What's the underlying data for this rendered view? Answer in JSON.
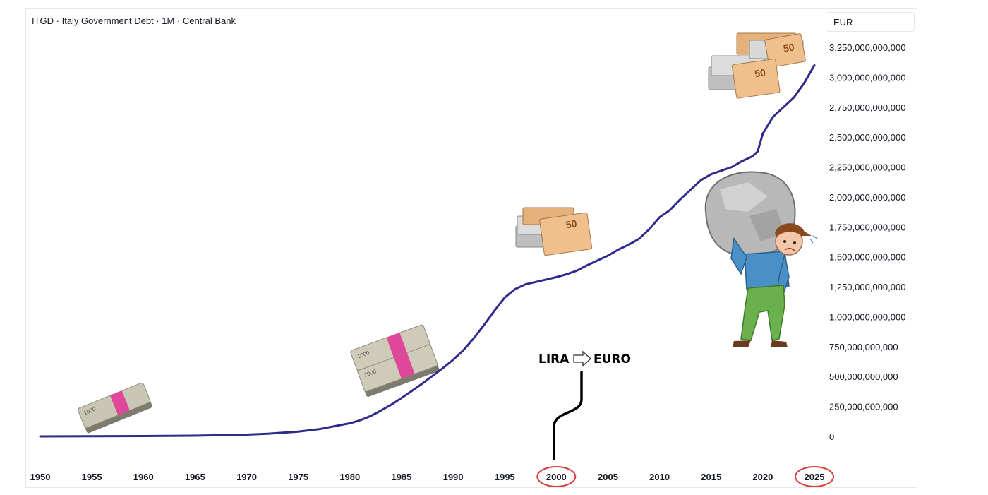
{
  "header": {
    "title": "ITGD · Italy Government Debt · 1M · Central Bank",
    "currency": "EUR"
  },
  "annotation": {
    "from": "LIRA",
    "to": "EURO",
    "arrow_icon": "outline-right-arrow-icon",
    "highlight_color": "#d93a3a"
  },
  "colors": {
    "line": "#2d2a8c",
    "lira_band": "#e0479a",
    "euro_note": "#e6b07a",
    "shirt": "#4a90c8",
    "pants": "#6ab04c",
    "boulder": "#b8b8b8"
  },
  "chart_data": {
    "type": "line",
    "title": "ITGD · Italy Government Debt · 1M · Central Bank",
    "xlabel": "",
    "ylabel": "",
    "x_ticks": [
      "1950",
      "1955",
      "1960",
      "1965",
      "1970",
      "1975",
      "1980",
      "1985",
      "1990",
      "1995",
      "2000",
      "2005",
      "2010",
      "2015",
      "2020",
      "2025"
    ],
    "y_ticks": [
      "0",
      "250,000,000,000",
      "500,000,000,000",
      "750,000,000,000",
      "1,000,000,000,000",
      "1,250,000,000,000",
      "1,500,000,000,000",
      "1,750,000,000,000",
      "2,000,000,000,000",
      "2,250,000,000,000",
      "2,500,000,000,000",
      "2,750,000,000,000",
      "3,000,000,000,000",
      "3,250,000,000,000"
    ],
    "xlim": [
      1950,
      2025
    ],
    "ylim": [
      0,
      3250000000000
    ],
    "highlighted_x_ticks": [
      "2000",
      "2025"
    ],
    "grid": false,
    "series": [
      {
        "x": [
          1950,
          1955,
          1960,
          1965,
          1970,
          1972,
          1975,
          1977,
          1980,
          1981,
          1982,
          1983,
          1984,
          1985,
          1986,
          1987,
          1988,
          1989,
          1990,
          1991,
          1992,
          1993,
          1994,
          1995,
          1996,
          1997,
          1998,
          1999,
          2000,
          2001,
          2002,
          2003,
          2004,
          2005,
          2006,
          2007,
          2008,
          2009,
          2010,
          2011,
          2012,
          2013,
          2014,
          2015,
          2016,
          2017,
          2018,
          2019,
          2019.5,
          2020,
          2021,
          2022,
          2023,
          2024,
          2025
        ],
        "values": [
          0,
          1000000000,
          3000000000,
          6000000000,
          15000000000,
          22000000000,
          40000000000,
          60000000000,
          110000000000,
          135000000000,
          170000000000,
          215000000000,
          265000000000,
          320000000000,
          380000000000,
          440000000000,
          505000000000,
          570000000000,
          640000000000,
          720000000000,
          820000000000,
          930000000000,
          1050000000000,
          1160000000000,
          1230000000000,
          1270000000000,
          1290000000000,
          1310000000000,
          1330000000000,
          1355000000000,
          1385000000000,
          1430000000000,
          1470000000000,
          1510000000000,
          1560000000000,
          1600000000000,
          1650000000000,
          1730000000000,
          1830000000000,
          1890000000000,
          1980000000000,
          2060000000000,
          2140000000000,
          2190000000000,
          2220000000000,
          2250000000000,
          2300000000000,
          2340000000000,
          2380000000000,
          2530000000000,
          2670000000000,
          2750000000000,
          2830000000000,
          2950000000000,
          3100000000000
        ]
      }
    ]
  }
}
